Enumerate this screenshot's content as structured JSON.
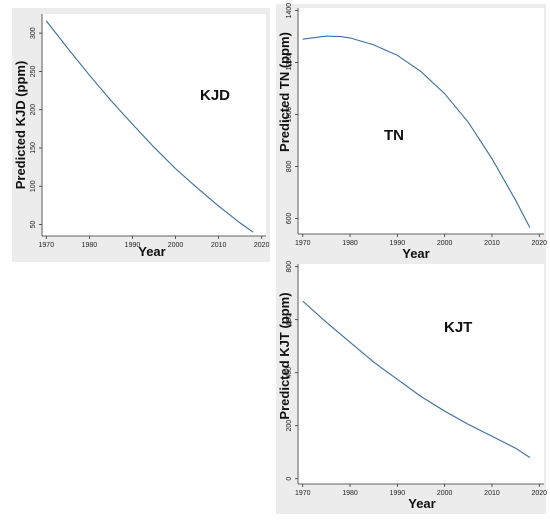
{
  "chart_data": [
    {
      "type": "line",
      "panel": "kjd",
      "label": "KJD",
      "xlabel": "Year",
      "ylabel": "Predicted KJD (ppm)",
      "xlim": [
        1969,
        2021
      ],
      "ylim": [
        35,
        325
      ],
      "xticks": [
        1970,
        1980,
        1990,
        2000,
        2010,
        2020
      ],
      "yticks": [
        50,
        100,
        150,
        200,
        250,
        300
      ],
      "series": [
        {
          "color": "#3a6fa0",
          "x": [
            1970,
            1975,
            1980,
            1985,
            1990,
            1995,
            2000,
            2005,
            2010,
            2015,
            2018
          ],
          "y": [
            316,
            280,
            245,
            212,
            181,
            151,
            123,
            98,
            74,
            52,
            40
          ]
        }
      ]
    },
    {
      "type": "line",
      "panel": "tn",
      "label": "TN",
      "xlabel": "Year",
      "ylabel": "Predicted TN (ppm)",
      "xlim": [
        1969,
        2021
      ],
      "ylim": [
        540,
        1410
      ],
      "xticks": [
        1970,
        1980,
        1990,
        2000,
        2010,
        2020
      ],
      "yticks": [
        600,
        800,
        1000,
        1200,
        1400
      ],
      "series": [
        {
          "color": "#3a6fa0",
          "x": [
            1970,
            1975,
            1978,
            1980,
            1985,
            1990,
            1995,
            2000,
            2005,
            2010,
            2015,
            2018
          ],
          "y": [
            1290,
            1302,
            1300,
            1295,
            1268,
            1228,
            1165,
            1080,
            970,
            830,
            670,
            565
          ]
        }
      ]
    },
    {
      "type": "line",
      "panel": "kjt",
      "label": "KJT",
      "xlabel": "Year",
      "ylabel": "Predicted KJT (ppm)",
      "xlim": [
        1969,
        2021
      ],
      "ylim": [
        -20,
        810
      ],
      "xticks": [
        1970,
        1980,
        1990,
        2000,
        2010,
        2020
      ],
      "yticks": [
        0,
        200,
        400,
        600,
        800
      ],
      "series": [
        {
          "color": "#3a6fa0",
          "x": [
            1970,
            1975,
            1980,
            1985,
            1990,
            1995,
            2000,
            2005,
            2010,
            2015,
            2018
          ],
          "y": [
            670,
            590,
            515,
            440,
            375,
            310,
            255,
            205,
            160,
            115,
            80
          ]
        }
      ]
    }
  ]
}
